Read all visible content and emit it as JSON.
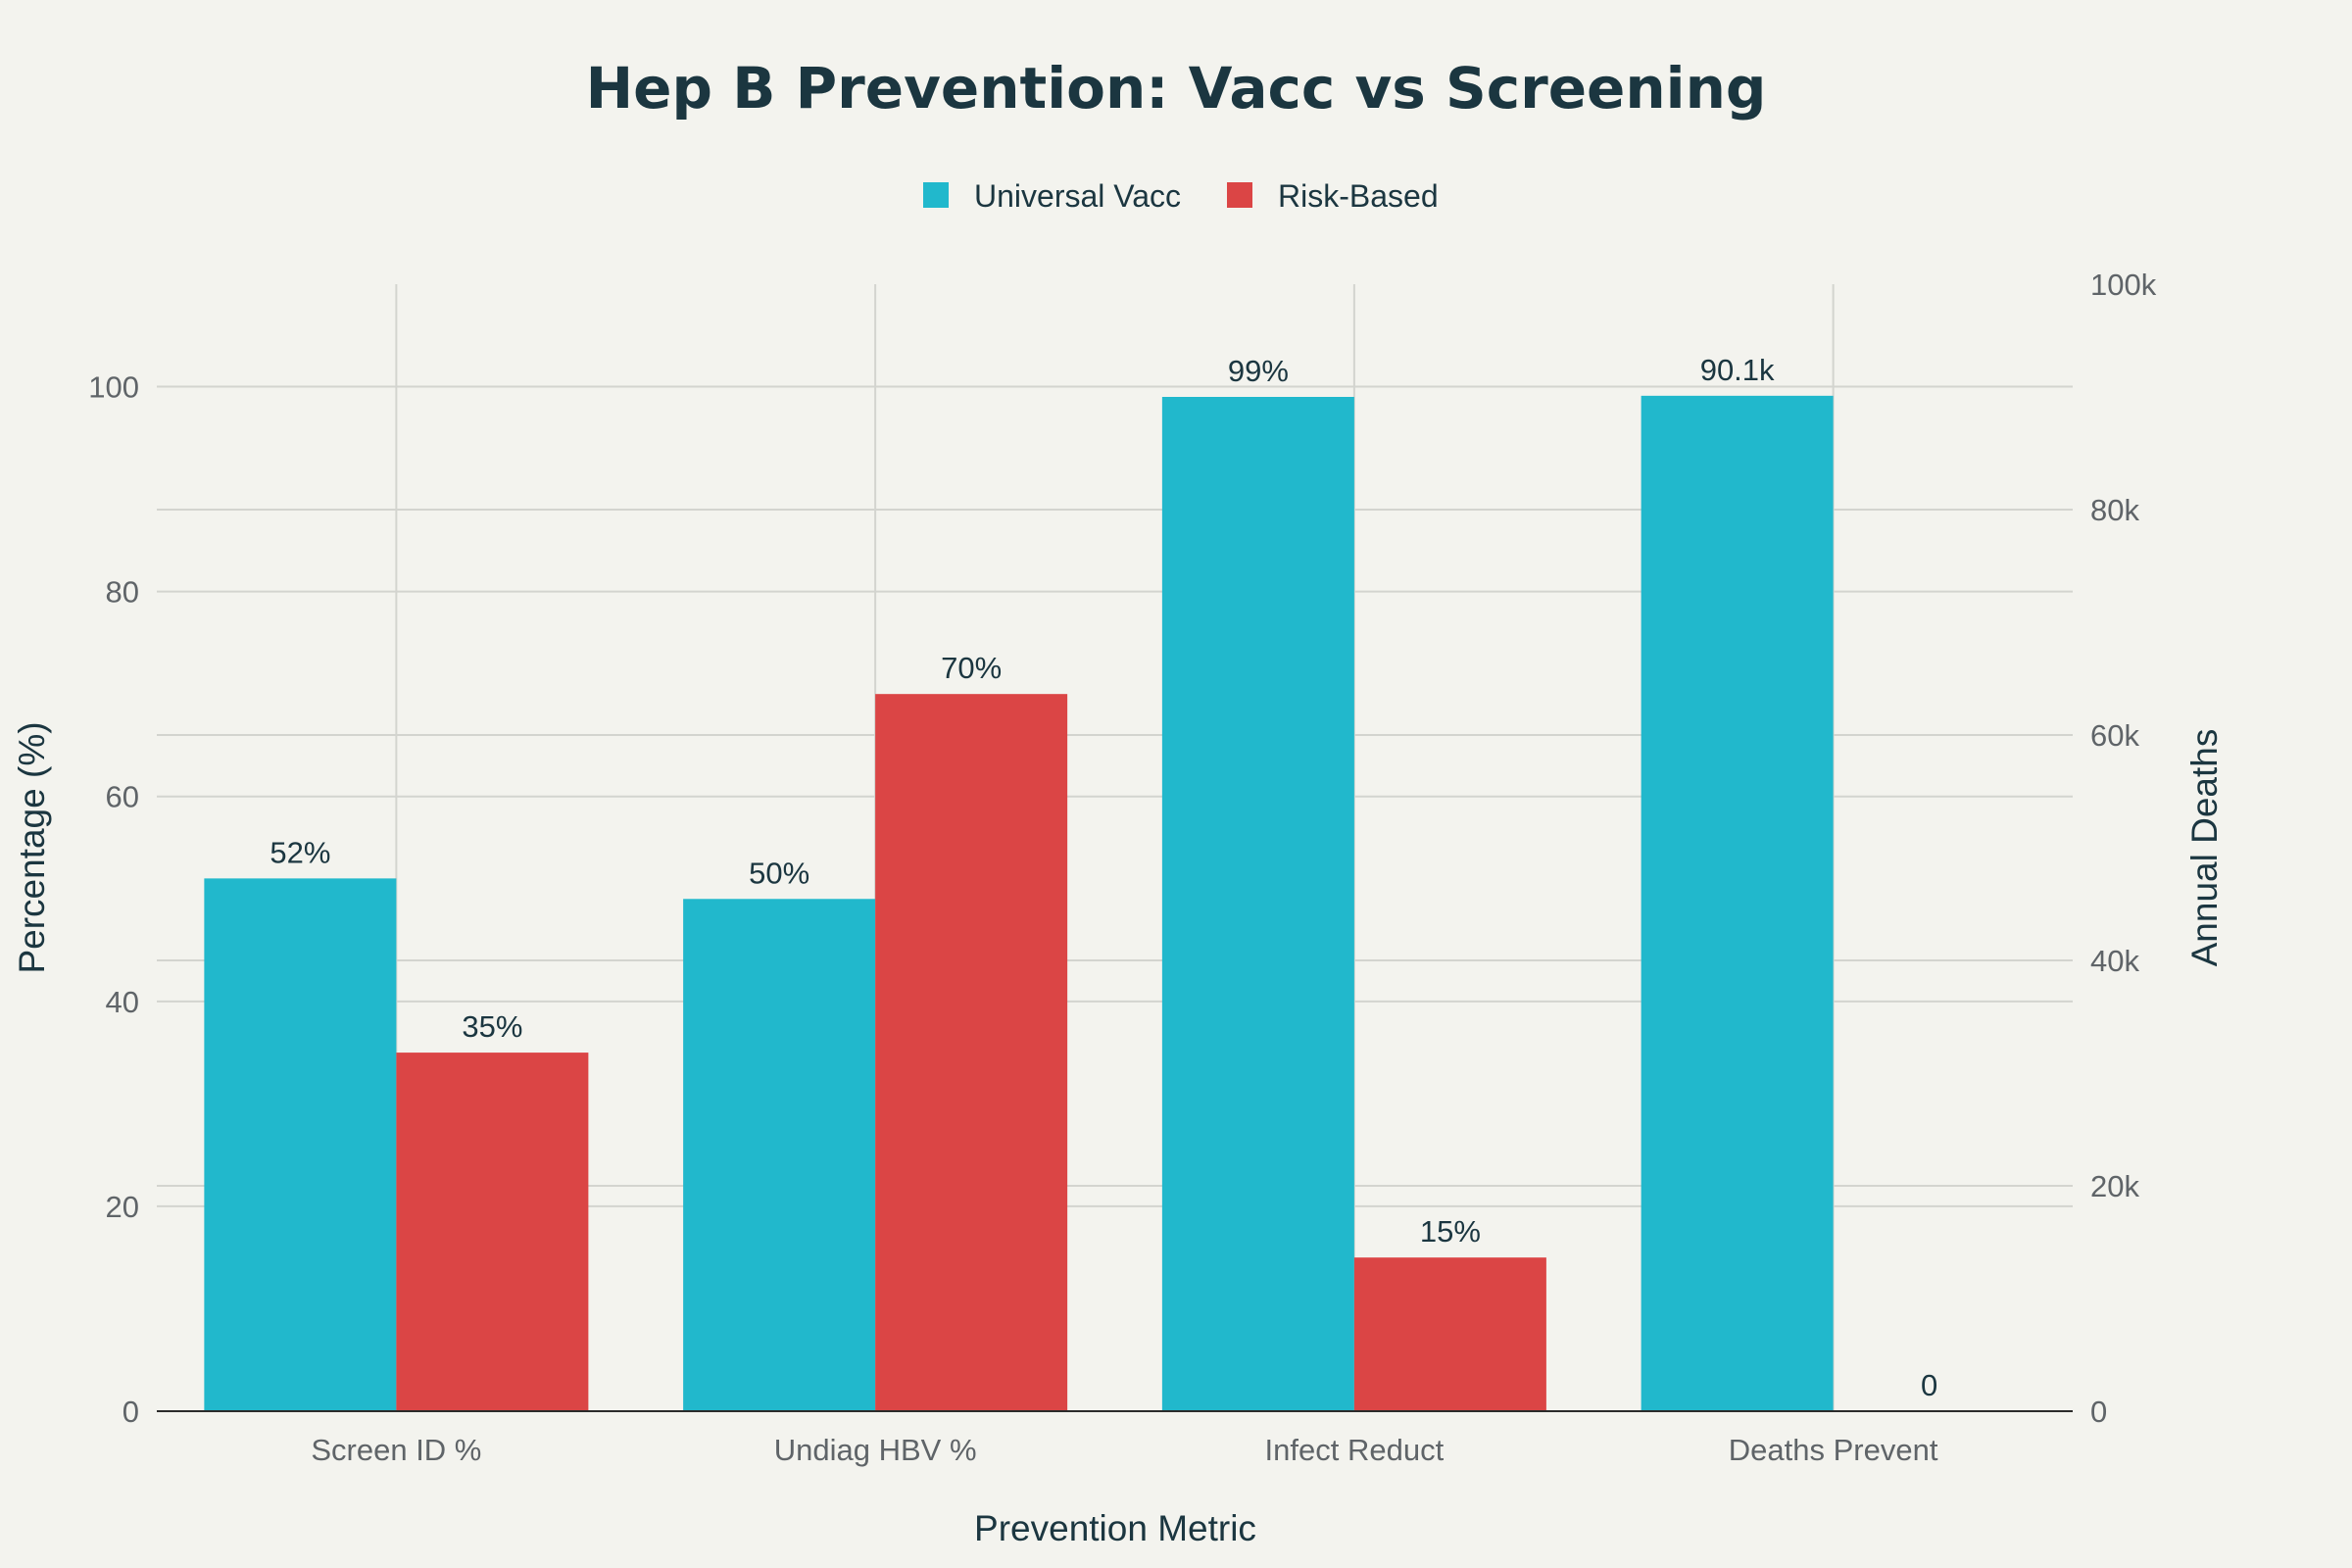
{
  "chart_data": {
    "type": "bar",
    "title": "Hep B Prevention: Vacc vs Screening",
    "xlabel": "Prevention Metric",
    "ylabel": "Percentage (%)",
    "y2label": "Annual Deaths",
    "categories": [
      "Screen ID %",
      "Undiag HBV %",
      "Infect Reduct",
      "Deaths Prevent"
    ],
    "ylim": [
      0,
      110
    ],
    "y2lim": [
      0,
      100000
    ],
    "yticks": [
      0,
      20,
      40,
      60,
      80,
      100
    ],
    "y2ticks": [
      0,
      20000,
      40000,
      60000,
      80000,
      100000
    ],
    "y2ticklabels": [
      "0",
      "20k",
      "40k",
      "60k",
      "80k",
      "100k"
    ],
    "legend_position": "top-center",
    "grid": true,
    "series": [
      {
        "name": "Universal Vacc",
        "color": "#21b8cc",
        "values": [
          52,
          50,
          99,
          90100
        ],
        "axes": [
          "left",
          "left",
          "left",
          "right"
        ],
        "labels": [
          "52%",
          "50%",
          "99%",
          "90.1k"
        ]
      },
      {
        "name": "Risk-Based",
        "color": "#db4545",
        "values": [
          35,
          70,
          15,
          0
        ],
        "axes": [
          "left",
          "left",
          "left",
          "right"
        ],
        "labels": [
          "35%",
          "70%",
          "15%",
          "0"
        ]
      }
    ]
  }
}
